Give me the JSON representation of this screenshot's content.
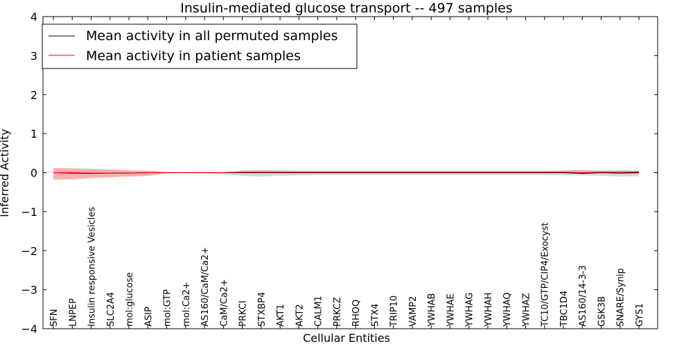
{
  "chart_data": {
    "type": "line",
    "title": "Insulin-mediated glucose transport -- 497 samples",
    "xlabel": "Cellular Entities",
    "ylabel": "Inferred Activity",
    "ylim": [
      -4,
      4
    ],
    "yticks": [
      -4,
      -3,
      -2,
      -1,
      0,
      1,
      2,
      3,
      4
    ],
    "ytick_labels": [
      "−4",
      "−3",
      "−2",
      "−1",
      "0",
      "1",
      "2",
      "3",
      "4"
    ],
    "legend_position": "top-left",
    "categories": [
      "SFN",
      "LNPEP",
      "Insulin responsive Vesicles",
      "SLC2A4",
      "mol:glucose",
      "ASIP",
      "mol:GTP",
      "mol:Ca2+",
      "AS160/CaM/Ca2+",
      "CaM/Ca2+",
      "PRKCI",
      "STXBP4",
      "AKT1",
      "AKT2",
      "CALM1",
      "PRKCZ",
      "RHOQ",
      "STX4",
      "TRIP10",
      "VAMP2",
      "YWHAB",
      "YWHAE",
      "YWHAG",
      "YWHAH",
      "YWHAQ",
      "YWHAZ",
      "TC10/GTP/CIP4/Exocyst",
      "TBC1D4",
      "AS160/14-3-3",
      "GSK3B",
      "SNARE/Synip",
      "GYS1"
    ],
    "series": [
      {
        "name": "Mean activity in all permuted samples",
        "color": "#000000",
        "values": [
          0.0,
          -0.01,
          -0.02,
          -0.01,
          -0.01,
          0.0,
          0.0,
          0.0,
          0.0,
          0.0,
          0.0,
          0.0,
          0.0,
          0.0,
          0.0,
          0.0,
          0.0,
          0.0,
          0.0,
          0.0,
          0.0,
          0.0,
          0.0,
          0.0,
          0.0,
          0.0,
          0.0,
          0.0,
          -0.02,
          0.0,
          -0.01,
          0.0
        ],
        "band": {
          "color": "#c8c8c8",
          "upper": [
            0.08,
            0.07,
            0.07,
            0.06,
            0.05,
            0.04,
            0.02,
            0.02,
            0.02,
            0.02,
            0.06,
            0.08,
            0.06,
            0.05,
            0.05,
            0.05,
            0.05,
            0.05,
            0.05,
            0.05,
            0.05,
            0.05,
            0.05,
            0.05,
            0.05,
            0.05,
            0.05,
            0.05,
            0.06,
            0.06,
            0.07,
            0.06
          ],
          "lower": [
            -0.08,
            -0.08,
            -0.08,
            -0.07,
            -0.06,
            -0.04,
            -0.02,
            -0.02,
            -0.03,
            -0.04,
            -0.08,
            -0.1,
            -0.08,
            -0.07,
            -0.06,
            -0.06,
            -0.06,
            -0.06,
            -0.06,
            -0.06,
            -0.06,
            -0.06,
            -0.06,
            -0.06,
            -0.06,
            -0.06,
            -0.06,
            -0.06,
            -0.07,
            -0.08,
            -0.1,
            -0.09
          ]
        }
      },
      {
        "name": "Mean activity in patient samples",
        "color": "#ff0000",
        "values": [
          0.0,
          0.0,
          -0.01,
          -0.01,
          -0.01,
          0.0,
          0.0,
          0.0,
          0.0,
          0.0,
          0.01,
          0.01,
          0.01,
          0.01,
          0.01,
          0.01,
          0.01,
          0.01,
          0.01,
          0.01,
          0.01,
          0.01,
          0.01,
          0.01,
          0.01,
          0.01,
          0.01,
          0.01,
          0.0,
          0.01,
          0.01,
          0.02
        ],
        "band": {
          "color": "#f4a6a6",
          "upper": [
            0.12,
            0.11,
            0.1,
            0.08,
            0.06,
            0.05,
            0.02,
            0.01,
            0.01,
            0.02,
            0.04,
            0.05,
            0.04,
            0.04,
            0.04,
            0.04,
            0.04,
            0.04,
            0.04,
            0.04,
            0.04,
            0.04,
            0.04,
            0.04,
            0.04,
            0.04,
            0.04,
            0.05,
            0.07,
            0.04,
            0.03,
            0.03
          ],
          "lower": [
            -0.18,
            -0.17,
            -0.14,
            -0.12,
            -0.1,
            -0.08,
            -0.02,
            -0.01,
            -0.01,
            -0.02,
            -0.02,
            -0.02,
            -0.02,
            -0.02,
            -0.02,
            -0.02,
            -0.02,
            -0.02,
            -0.02,
            -0.02,
            -0.02,
            -0.02,
            -0.02,
            -0.02,
            -0.02,
            -0.02,
            -0.02,
            -0.02,
            -0.02,
            -0.02,
            -0.03,
            -0.03
          ]
        }
      }
    ]
  }
}
